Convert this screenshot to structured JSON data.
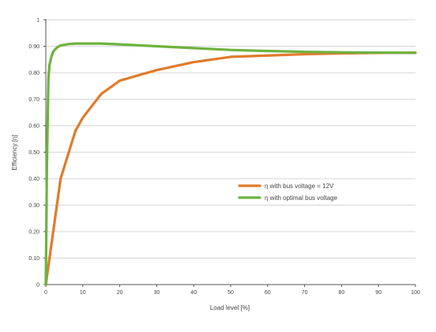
{
  "chart_data": {
    "type": "line",
    "title": "",
    "xlabel": "Load level [%]",
    "ylabel": "Efficiency [η]",
    "xlim": [
      0,
      100
    ],
    "ylim": [
      0,
      1
    ],
    "x_ticks": [
      0,
      10,
      20,
      30,
      40,
      50,
      60,
      70,
      80,
      90,
      100
    ],
    "y_ticks": [
      0,
      0.1,
      0.2,
      0.3,
      0.4,
      0.5,
      0.6,
      0.7,
      0.8,
      0.9,
      1
    ],
    "x_tick_labels": [
      "0",
      "10",
      "20",
      "30",
      "40",
      "50",
      "60",
      "70",
      "80",
      "90",
      "100"
    ],
    "y_tick_labels": [
      "0",
      "0.10",
      "0.20",
      "0.30",
      "0.40",
      "0.50",
      "0.60",
      "0.70",
      "0.80",
      "0.90",
      "1"
    ],
    "grid": "horizontal",
    "legend_position": "center-right",
    "series": [
      {
        "name": "η with bus voltage = 12V",
        "color": "#E07B2C",
        "x": [
          0,
          4,
          8,
          10,
          15,
          20,
          25,
          30,
          40,
          50,
          60,
          70,
          80,
          90,
          100
        ],
        "y": [
          0,
          0.4,
          0.58,
          0.63,
          0.72,
          0.77,
          0.79,
          0.81,
          0.84,
          0.86,
          0.865,
          0.87,
          0.873,
          0.875,
          0.876
        ]
      },
      {
        "name": "η with optimal bus voltage",
        "color": "#6DB33F",
        "x": [
          0,
          0.3,
          0.7,
          1,
          1.5,
          2,
          3,
          4,
          6,
          8,
          10,
          15,
          20,
          30,
          40,
          50,
          60,
          70,
          80,
          90,
          100
        ],
        "y": [
          0,
          0.45,
          0.78,
          0.83,
          0.86,
          0.88,
          0.895,
          0.903,
          0.908,
          0.91,
          0.91,
          0.91,
          0.907,
          0.9,
          0.893,
          0.886,
          0.882,
          0.879,
          0.877,
          0.876,
          0.875
        ]
      }
    ]
  }
}
